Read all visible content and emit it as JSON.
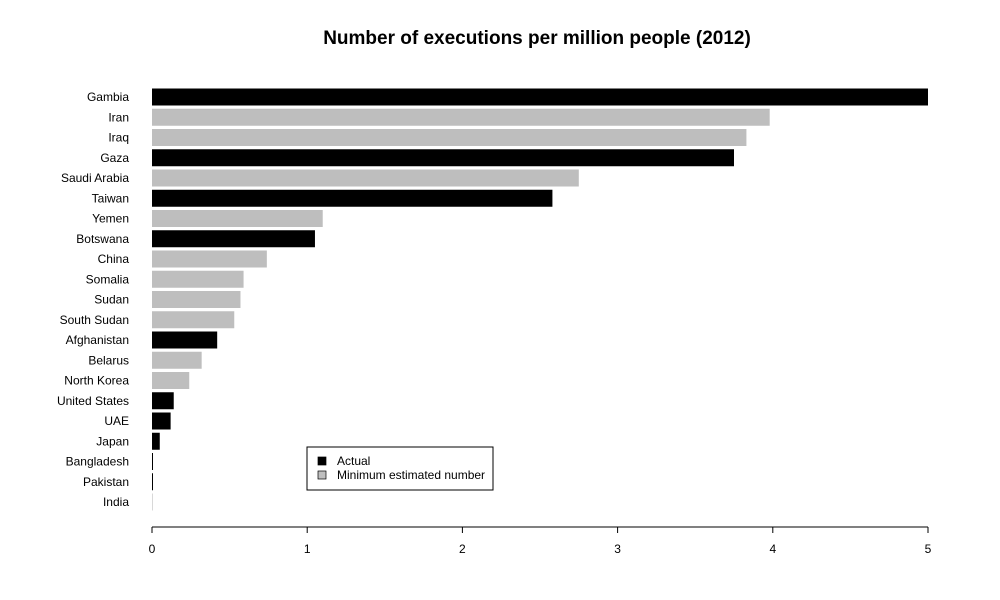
{
  "chart_data": {
    "type": "bar",
    "orientation": "horizontal",
    "title": "Number of executions per million people (2012)",
    "xlabel": "",
    "ylabel": "",
    "xlim": [
      0,
      5
    ],
    "xticks": [
      "0",
      "1",
      "2",
      "3",
      "4",
      "5"
    ],
    "grid": false,
    "legend_position": "bottom-center",
    "legend": [
      {
        "name": "Actual",
        "color": "#000000"
      },
      {
        "name": "Minimum estimated number",
        "color": "#bebebe"
      }
    ],
    "categories": [
      "Gambia",
      "Iran",
      "Iraq",
      "Gaza",
      "Saudi Arabia",
      "Taiwan",
      "Yemen",
      "Botswana",
      "China",
      "Somalia",
      "Sudan",
      "South Sudan",
      "Afghanistan",
      "Belarus",
      "North Korea",
      "United States",
      "UAE",
      "Japan",
      "Bangladesh",
      "Pakistan",
      "India"
    ],
    "values": [
      5.0,
      3.98,
      3.83,
      3.75,
      2.75,
      2.58,
      1.1,
      1.05,
      0.74,
      0.59,
      0.57,
      0.53,
      0.42,
      0.32,
      0.24,
      0.14,
      0.12,
      0.05,
      0.006,
      0.006,
      0.001
    ],
    "kind": [
      "Actual",
      "Minimum estimated number",
      "Minimum estimated number",
      "Actual",
      "Minimum estimated number",
      "Actual",
      "Minimum estimated number",
      "Actual",
      "Minimum estimated number",
      "Minimum estimated number",
      "Minimum estimated number",
      "Minimum estimated number",
      "Actual",
      "Minimum estimated number",
      "Minimum estimated number",
      "Actual",
      "Actual",
      "Actual",
      "Actual",
      "Actual",
      "Actual"
    ]
  }
}
